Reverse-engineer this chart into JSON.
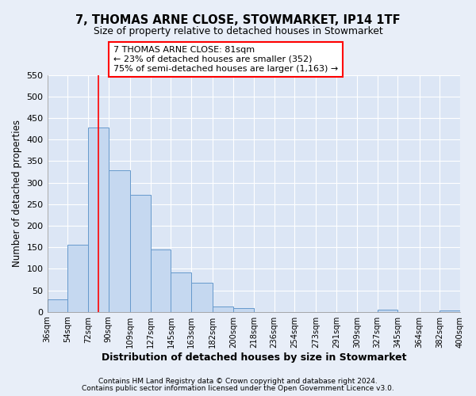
{
  "title": "7, THOMAS ARNE CLOSE, STOWMARKET, IP14 1TF",
  "subtitle": "Size of property relative to detached houses in Stowmarket",
  "xlabel": "Distribution of detached houses by size in Stowmarket",
  "ylabel": "Number of detached properties",
  "bin_edges": [
    36,
    54,
    72,
    90,
    109,
    127,
    145,
    163,
    182,
    200,
    218,
    236,
    254,
    273,
    291,
    309,
    327,
    345,
    364,
    382,
    400
  ],
  "bar_heights": [
    28,
    155,
    428,
    328,
    272,
    145,
    91,
    67,
    12,
    9,
    0,
    0,
    0,
    0,
    0,
    0,
    5,
    0,
    0,
    3
  ],
  "bar_color": "#c5d8f0",
  "bar_edge_color": "#6699cc",
  "ylim": [
    0,
    550
  ],
  "yticks": [
    0,
    50,
    100,
    150,
    200,
    250,
    300,
    350,
    400,
    450,
    500,
    550
  ],
  "red_line_x": 81,
  "annotation_title": "7 THOMAS ARNE CLOSE: 81sqm",
  "annotation_line1": "← 23% of detached houses are smaller (352)",
  "annotation_line2": "75% of semi-detached houses are larger (1,163) →",
  "footer_line1": "Contains HM Land Registry data © Crown copyright and database right 2024.",
  "footer_line2": "Contains public sector information licensed under the Open Government Licence v3.0.",
  "background_color": "#e8eef8",
  "plot_bg_color": "#dce6f5",
  "grid_color": "#ffffff",
  "tick_labels": [
    "36sqm",
    "54sqm",
    "72sqm",
    "90sqm",
    "109sqm",
    "127sqm",
    "145sqm",
    "163sqm",
    "182sqm",
    "200sqm",
    "218sqm",
    "236sqm",
    "254sqm",
    "273sqm",
    "291sqm",
    "309sqm",
    "327sqm",
    "345sqm",
    "364sqm",
    "382sqm",
    "400sqm"
  ]
}
